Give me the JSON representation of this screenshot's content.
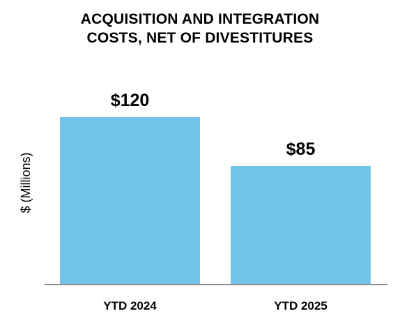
{
  "chart_data": {
    "type": "bar",
    "title_lines": [
      "ACQUISITION AND INTEGRATION",
      "COSTS, NET OF DIVESTITURES"
    ],
    "categories": [
      "YTD 2024",
      "YTD 2025"
    ],
    "values": [
      120,
      85
    ],
    "value_labels": [
      "$120",
      "$85"
    ],
    "ylabel": "$ (Millions)",
    "xlabel": "",
    "ylim": [
      0,
      120
    ],
    "grid": false,
    "legend": "none",
    "bar_color": "#71C4E7",
    "axis_color": "#8C8C8C"
  }
}
